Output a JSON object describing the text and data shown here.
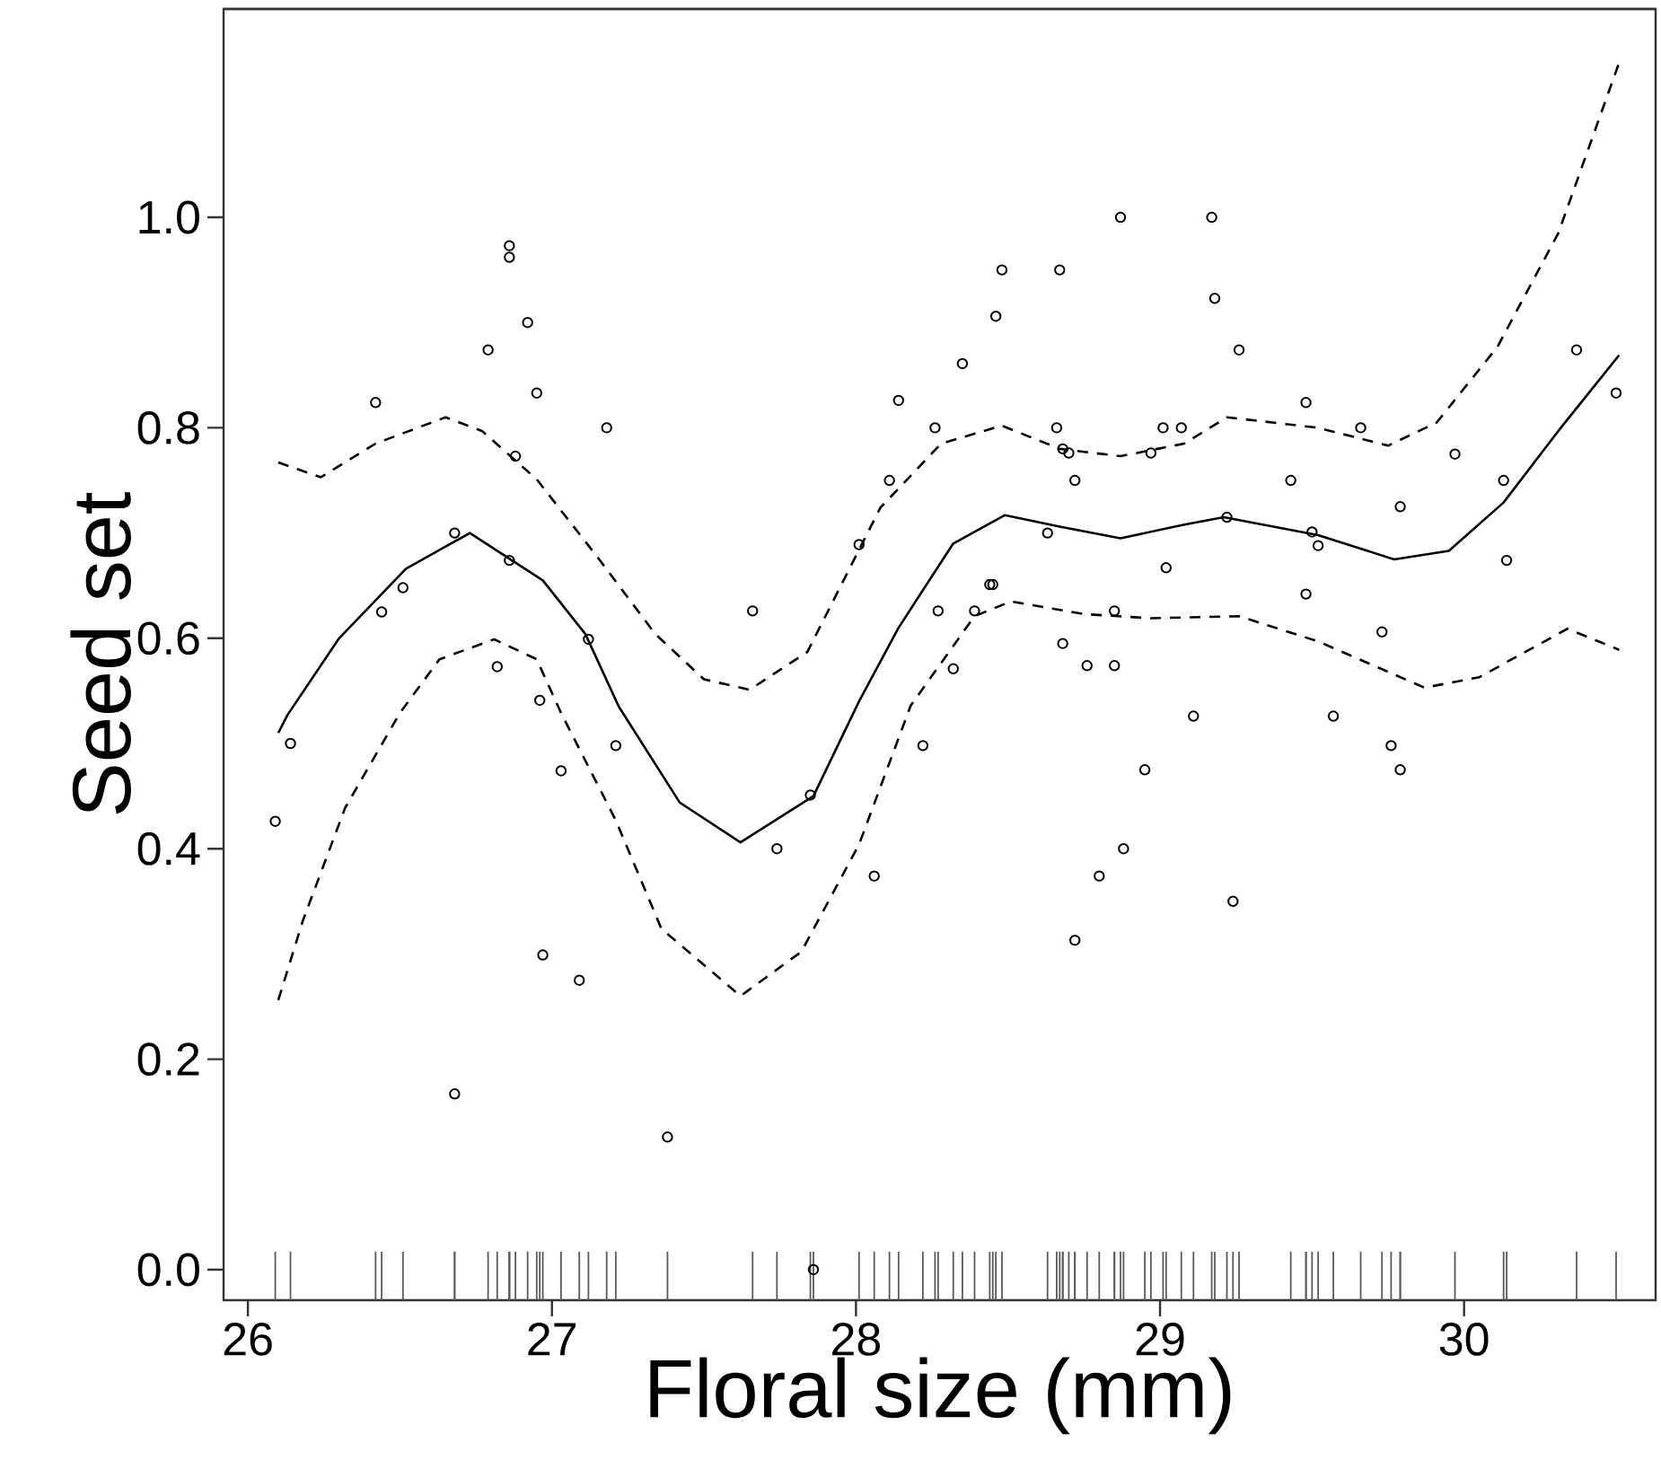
{
  "chart_data": {
    "type": "scatter",
    "xlabel": "Floral size (mm)",
    "ylabel": "Seed set",
    "xlim": [
      25.92,
      30.63
    ],
    "ylim": [
      -0.029,
      1.198
    ],
    "xticks": [
      26,
      27,
      28,
      29,
      30
    ],
    "yticks": [
      {
        "value": 0,
        "label": "0.0"
      },
      {
        "value": 0.2,
        "label": "0.2"
      },
      {
        "value": 0.4,
        "label": "0.4"
      },
      {
        "value": 0.6,
        "label": "0.6"
      },
      {
        "value": 0.8,
        "label": "0.8"
      },
      {
        "value": 1.0,
        "label": "1.0"
      }
    ],
    "series": [
      {
        "marker": "circle",
        "color": "#000000",
        "x": [
          26.14,
          26.09,
          26.86,
          26.86,
          26.92,
          26.79,
          26.95,
          26.42,
          27.18,
          26.88,
          26.68,
          26.86,
          26.51,
          26.44,
          27.12,
          26.82,
          26.96,
          27.21,
          27.03,
          28.22,
          27.85,
          27.74,
          28.06,
          26.97,
          27.09,
          26.68,
          27.38,
          27.86,
          28.87,
          28.48,
          28.67,
          28.46,
          28.35,
          28.14,
          28.26,
          28.66,
          29.01,
          29.07,
          28.68,
          28.7,
          28.97,
          28.72,
          28.11,
          28.01,
          28.63,
          29.02,
          27.66,
          28.27,
          28.39,
          28.44,
          28.45,
          28.85,
          28.68,
          28.76,
          28.85,
          28.32,
          29.11,
          29.57,
          29.76,
          29.79,
          28.95,
          28.88,
          28.8,
          29.24,
          28.72,
          29.17,
          29.18,
          29.26,
          30.37,
          30.5,
          29.48,
          29.66,
          29.97,
          29.43,
          30.13,
          29.79,
          29.22,
          29.5,
          29.52,
          30.14,
          29.48,
          29.73
        ],
        "values": [
          0.5,
          0.426,
          0.973,
          0.962,
          0.9,
          0.874,
          0.833,
          0.824,
          0.8,
          0.773,
          0.7,
          0.674,
          0.648,
          0.625,
          0.599,
          0.573,
          0.541,
          0.498,
          0.474,
          0.498,
          0.451,
          0.4,
          0.374,
          0.299,
          0.275,
          0.167,
          0.126,
          0.0,
          1.0,
          0.95,
          0.95,
          0.906,
          0.861,
          0.826,
          0.8,
          0.8,
          0.8,
          0.8,
          0.78,
          0.776,
          0.776,
          0.75,
          0.75,
          0.689,
          0.7,
          0.667,
          0.626,
          0.626,
          0.626,
          0.651,
          0.651,
          0.626,
          0.595,
          0.574,
          0.574,
          0.571,
          0.526,
          0.526,
          0.498,
          0.475,
          0.475,
          0.4,
          0.374,
          0.35,
          0.313,
          1.0,
          0.923,
          0.874,
          0.874,
          0.833,
          0.824,
          0.8,
          0.775,
          0.75,
          0.75,
          0.725,
          0.715,
          0.701,
          0.688,
          0.674,
          0.642,
          0.606
        ]
      },
      {
        "type": "line",
        "line_style": "solid",
        "color": "#000000",
        "x": [
          26.1,
          26.13,
          26.3,
          26.52,
          26.73,
          26.97,
          27.11,
          27.22,
          27.42,
          27.62,
          27.86,
          28.01,
          28.14,
          28.32,
          28.49,
          28.67,
          28.87,
          29.08,
          29.21,
          29.52,
          29.77,
          29.95,
          30.13,
          30.31,
          30.51
        ],
        "values": [
          0.51,
          0.527,
          0.6,
          0.666,
          0.7,
          0.655,
          0.604,
          0.535,
          0.444,
          0.406,
          0.45,
          0.54,
          0.61,
          0.69,
          0.717,
          0.706,
          0.695,
          0.708,
          0.715,
          0.698,
          0.675,
          0.683,
          0.729,
          0.797,
          0.869
        ]
      },
      {
        "type": "line",
        "line_style": "dashed",
        "color": "#000000",
        "x": [
          26.1,
          26.24,
          26.42,
          26.65,
          26.77,
          26.95,
          27.15,
          27.34,
          27.5,
          27.65,
          27.84,
          28.08,
          28.28,
          28.48,
          28.67,
          28.87,
          29.08,
          29.22,
          29.52,
          29.75,
          29.91,
          30.11,
          30.31,
          30.51
        ],
        "values": [
          0.767,
          0.753,
          0.785,
          0.81,
          0.797,
          0.751,
          0.677,
          0.604,
          0.561,
          0.551,
          0.587,
          0.724,
          0.785,
          0.802,
          0.78,
          0.773,
          0.785,
          0.81,
          0.8,
          0.783,
          0.805,
          0.877,
          0.985,
          1.147
        ]
      },
      {
        "type": "line",
        "line_style": "dashed",
        "color": "#000000",
        "x": [
          26.1,
          26.18,
          26.32,
          26.5,
          26.63,
          26.81,
          26.95,
          27.03,
          27.21,
          27.36,
          27.62,
          27.82,
          28.01,
          28.18,
          28.39,
          28.51,
          28.75,
          28.97,
          29.26,
          29.52,
          29.87,
          30.05,
          30.34,
          30.51
        ],
        "values": [
          0.256,
          0.331,
          0.439,
          0.529,
          0.58,
          0.599,
          0.58,
          0.529,
          0.427,
          0.324,
          0.26,
          0.302,
          0.404,
          0.536,
          0.621,
          0.635,
          0.623,
          0.619,
          0.621,
          0.597,
          0.553,
          0.563,
          0.609,
          0.589
        ]
      }
    ]
  }
}
